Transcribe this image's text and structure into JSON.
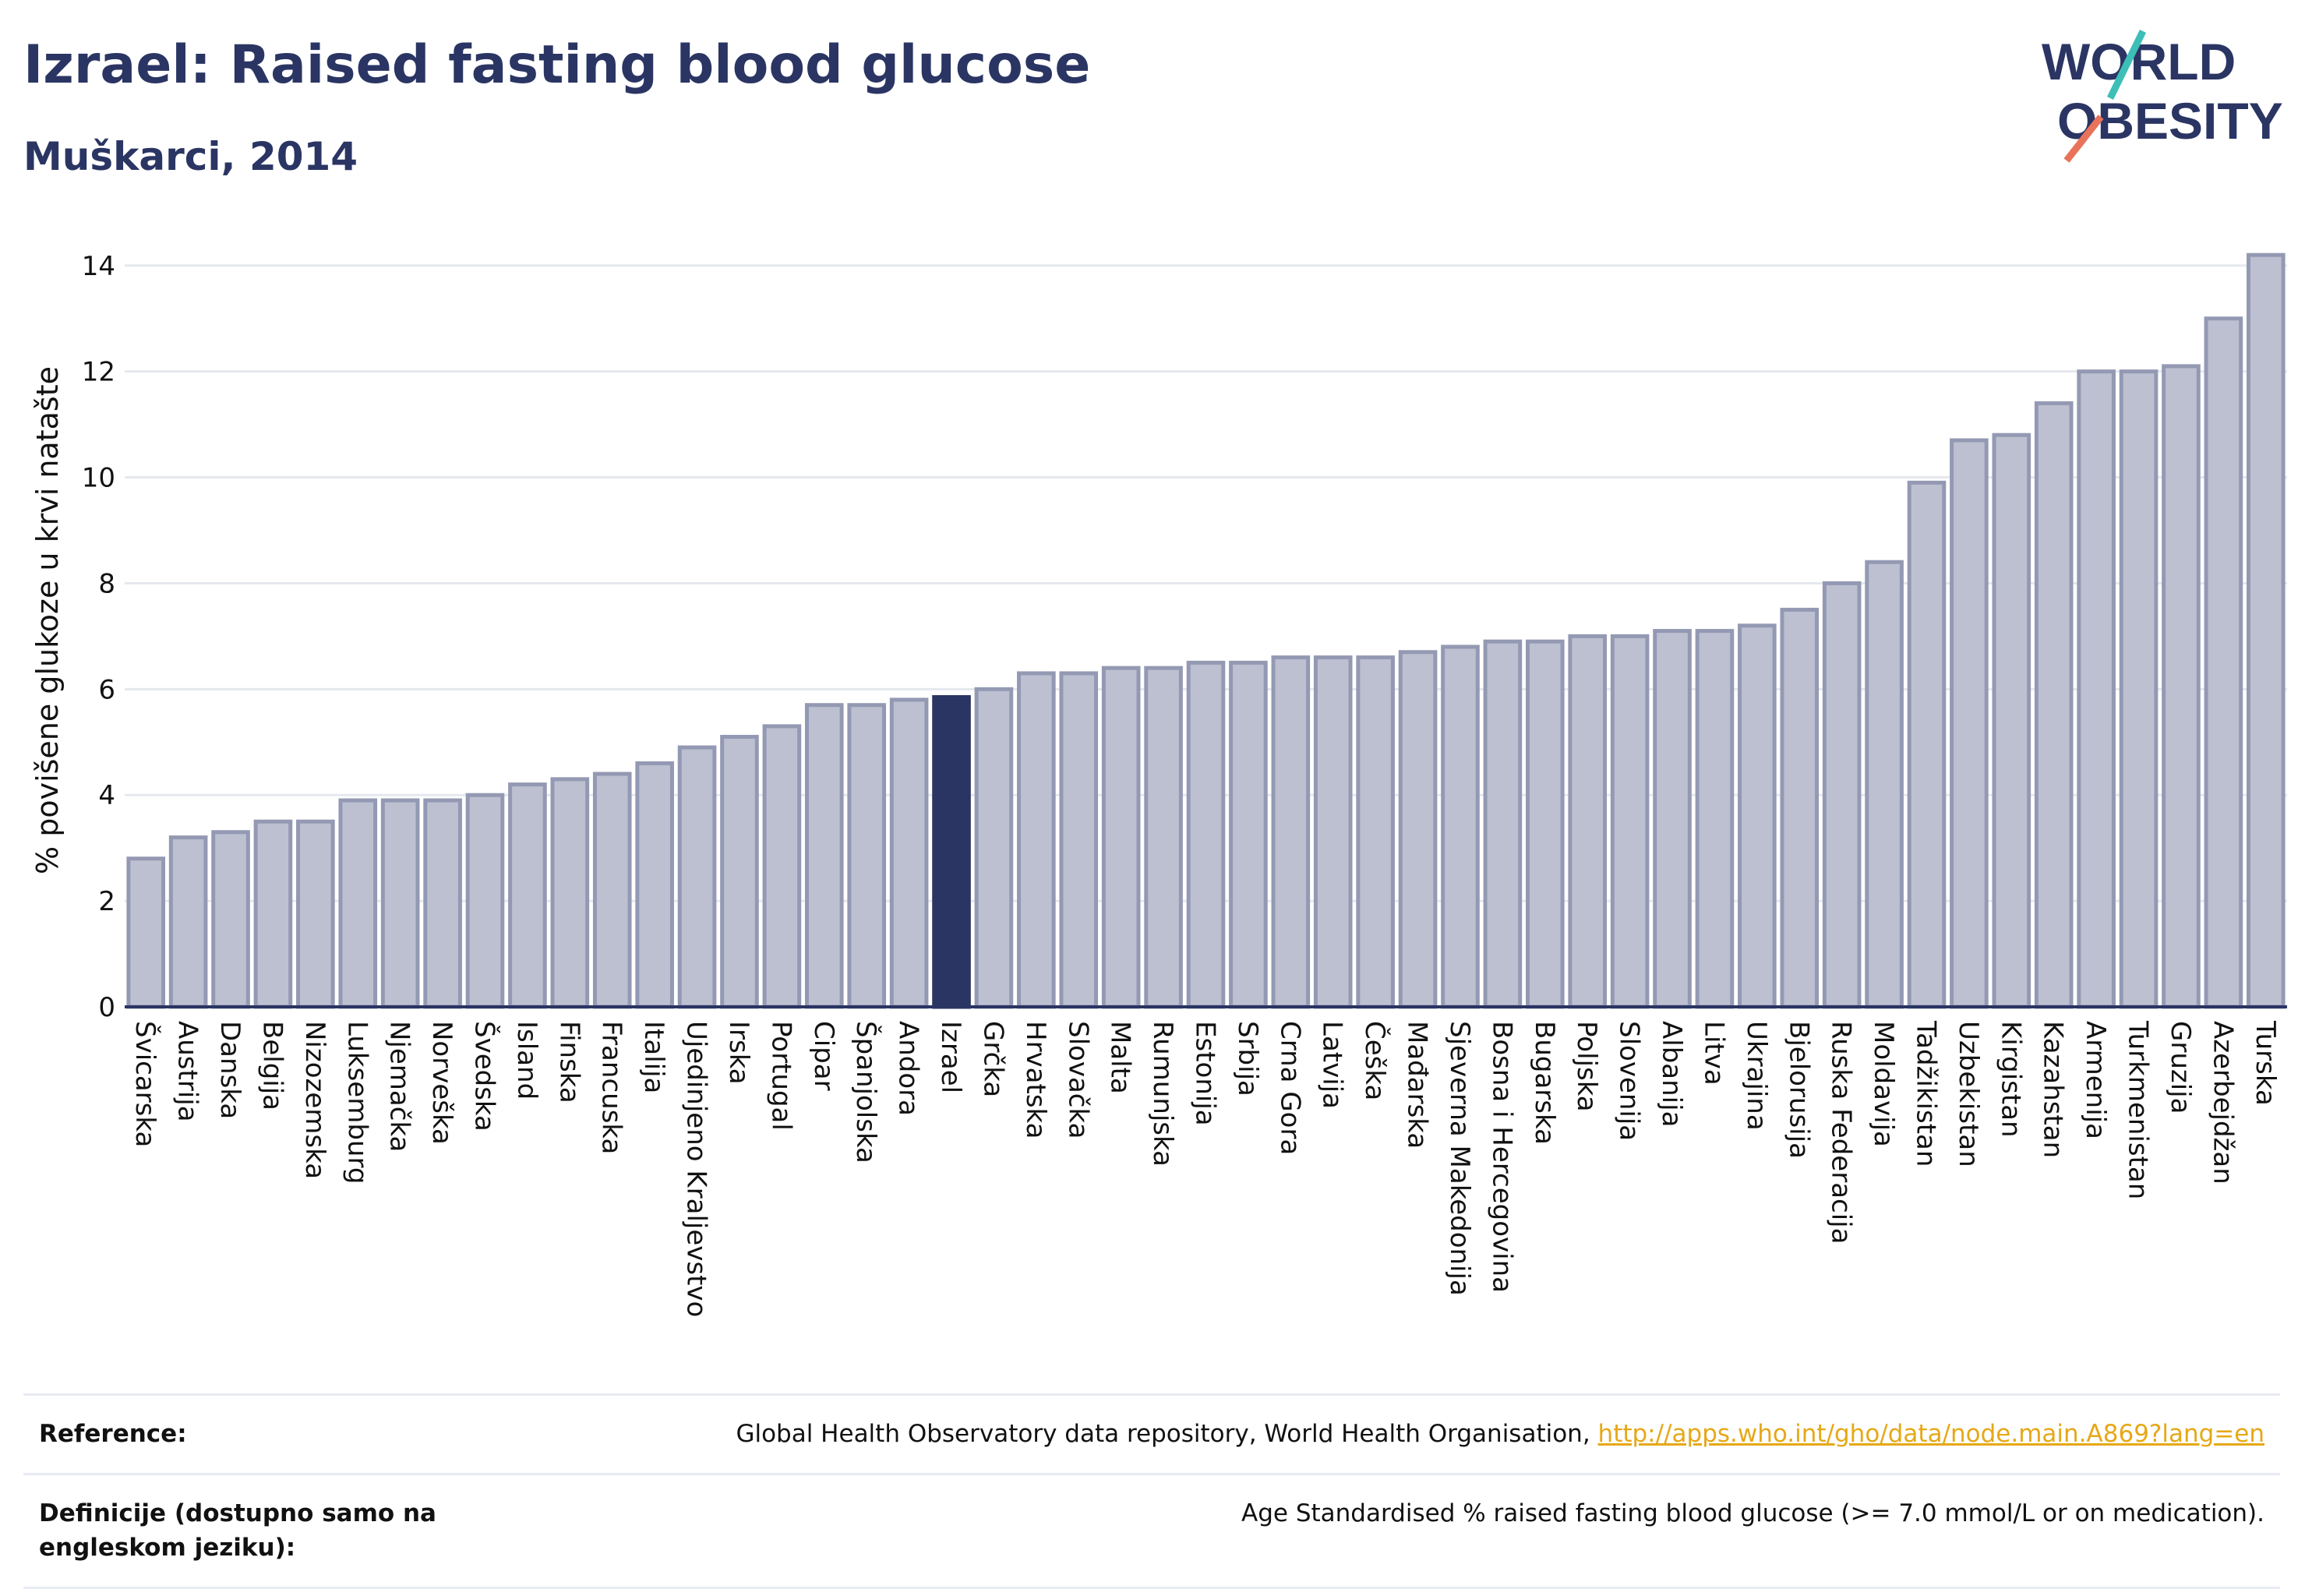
{
  "header": {
    "title": "Izrael: Raised fasting blood glucose",
    "subtitle": "Muškarci, 2014"
  },
  "logo": {
    "line1": "WORLD",
    "line2": "OBESITY",
    "accent_teal": "#3dbfb8",
    "accent_coral": "#e8735a",
    "text_color": "#2a3563"
  },
  "chart_data": {
    "type": "bar",
    "ylabel": "% povišene glukoze u krvi natašte",
    "ylim": [
      0,
      14.6
    ],
    "yticks": [
      0,
      2,
      4,
      6,
      8,
      10,
      12,
      14
    ],
    "grid": true,
    "highlight": "Izrael",
    "colors": {
      "bar": "#bcc0d0",
      "bar_border": "#9499b3",
      "highlight": "#2a3563"
    },
    "categories": [
      "Švicarska",
      "Austrija",
      "Danska",
      "Belgija",
      "Nizozemska",
      "Luksemburg",
      "Njemačka",
      "Norveška",
      "Švedska",
      "Island",
      "Finska",
      "Francuska",
      "Italija",
      "Ujedinjeno Kraljevstvo",
      "Irska",
      "Portugal",
      "Cipar",
      "Španjolska",
      "Andora",
      "Izrael",
      "Grčka",
      "Hrvatska",
      "Slovačka",
      "Malta",
      "Rumunjska",
      "Estonija",
      "Srbija",
      "Crna Gora",
      "Latvija",
      "Češka",
      "Mađarska",
      "Sjeverna Makedonija",
      "Bosna i Hercegovina",
      "Bugarska",
      "Poljska",
      "Slovenija",
      "Albanija",
      "Litva",
      "Ukrajina",
      "Bjelorusija",
      "Ruska Federacija",
      "Moldavija",
      "Tadžikistan",
      "Uzbekistan",
      "Kirgistan",
      "Kazahstan",
      "Armenija",
      "Turkmenistan",
      "Gruzija",
      "Azerbejdžan",
      "Turska"
    ],
    "values": [
      2.8,
      3.2,
      3.3,
      3.5,
      3.5,
      3.9,
      3.9,
      3.9,
      4.0,
      4.2,
      4.3,
      4.4,
      4.6,
      4.9,
      5.1,
      5.3,
      5.7,
      5.7,
      5.8,
      5.85,
      6.0,
      6.3,
      6.3,
      6.4,
      6.4,
      6.5,
      6.5,
      6.6,
      6.6,
      6.6,
      6.7,
      6.8,
      6.9,
      6.9,
      7.0,
      7.0,
      7.1,
      7.1,
      7.2,
      7.5,
      8.0,
      8.4,
      9.9,
      10.7,
      10.8,
      11.4,
      12.0,
      12.0,
      12.1,
      13.0,
      14.2
    ]
  },
  "footer": {
    "reference_label": "Reference:",
    "reference_text": "Global Health Observatory data repository, World Health Organisation,",
    "reference_link": "http://apps.who.int/gho/data/node.main.A869?lang=en",
    "definition_label": "Definicije (dostupno samo na engleskom jeziku):",
    "definition_text": "Age Standardised % raised fasting blood glucose (>= 7.0 mmol/L or on medication)."
  }
}
